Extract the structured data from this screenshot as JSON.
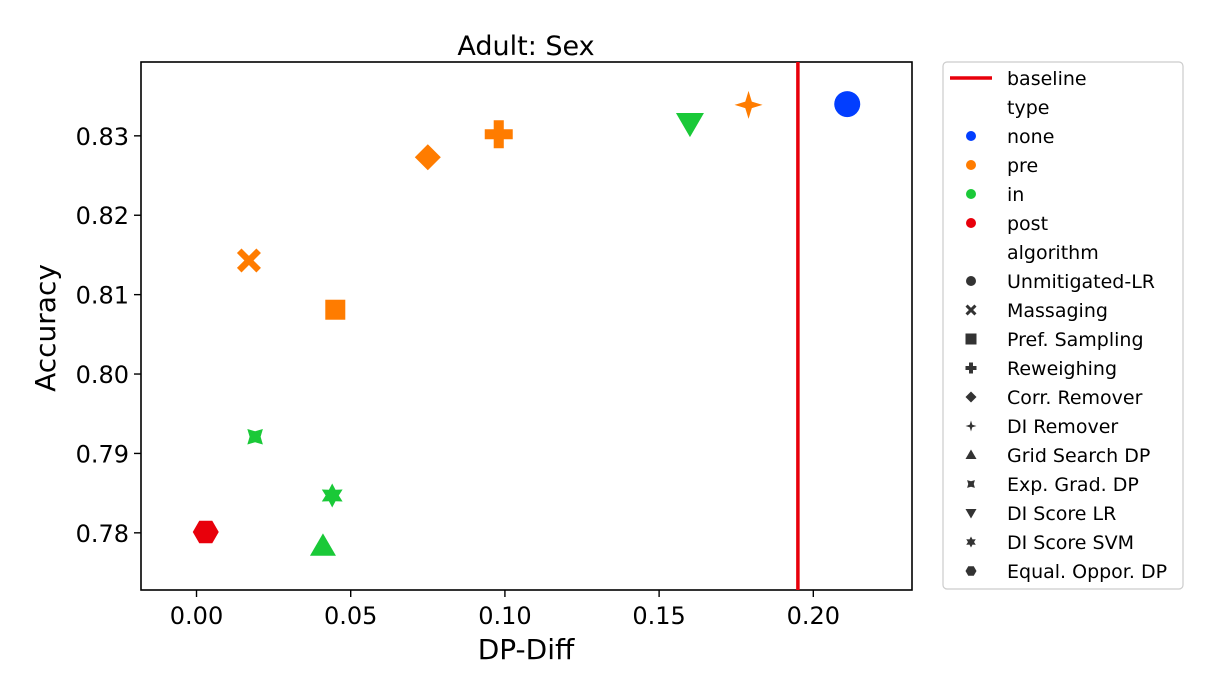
{
  "chart_data": {
    "type": "scatter",
    "title": "Adult: Sex",
    "xlabel": "DP-Diff",
    "ylabel": "Accuracy",
    "xlim": [
      -0.018,
      0.232
    ],
    "ylim": [
      0.7728,
      0.8393
    ],
    "xticks": [
      0.0,
      0.05,
      0.1,
      0.15,
      0.2
    ],
    "yticks": [
      0.78,
      0.79,
      0.8,
      0.81,
      0.82,
      0.83
    ],
    "x_tick_labels": [
      "0.00",
      "0.05",
      "0.10",
      "0.15",
      "0.20"
    ],
    "y_tick_labels": [
      "0.78",
      "0.79",
      "0.80",
      "0.81",
      "0.82",
      "0.83"
    ],
    "grid": false,
    "baseline": {
      "label": "baseline",
      "x": 0.195,
      "color": "#e8000b"
    },
    "legend": {
      "placement": "outside-right",
      "type_title": "type",
      "types": [
        {
          "label": "none",
          "color": "#023eff"
        },
        {
          "label": "pre",
          "color": "#ff7c00"
        },
        {
          "label": "in",
          "color": "#1ac938"
        },
        {
          "label": "post",
          "color": "#e8000b"
        }
      ],
      "algorithm_title": "algorithm",
      "algorithms": [
        {
          "label": "Unmitigated-LR",
          "marker": "circle"
        },
        {
          "label": "Massaging",
          "marker": "x"
        },
        {
          "label": "Pref. Sampling",
          "marker": "square"
        },
        {
          "label": "Reweighing",
          "marker": "plus"
        },
        {
          "label": "Corr. Remover",
          "marker": "diamond"
        },
        {
          "label": "DI Remover",
          "marker": "star4"
        },
        {
          "label": "Grid Search DP",
          "marker": "triangle-up"
        },
        {
          "label": "Exp. Grad. DP",
          "marker": "concave-star"
        },
        {
          "label": "DI Score LR",
          "marker": "triangle-down"
        },
        {
          "label": "DI Score SVM",
          "marker": "star6"
        },
        {
          "label": "Equal. Oppor. DP",
          "marker": "hexagon"
        }
      ]
    },
    "points": [
      {
        "algorithm": "Unmitigated-LR",
        "type": "none",
        "x": 0.211,
        "y": 0.834
      },
      {
        "algorithm": "Massaging",
        "type": "pre",
        "x": 0.017,
        "y": 0.8143
      },
      {
        "algorithm": "Pref. Sampling",
        "type": "pre",
        "x": 0.045,
        "y": 0.8081
      },
      {
        "algorithm": "Reweighing",
        "type": "pre",
        "x": 0.098,
        "y": 0.8302
      },
      {
        "algorithm": "Corr. Remover",
        "type": "pre",
        "x": 0.075,
        "y": 0.8273
      },
      {
        "algorithm": "DI Remover",
        "type": "pre",
        "x": 0.179,
        "y": 0.8339
      },
      {
        "algorithm": "Grid Search DP",
        "type": "in",
        "x": 0.041,
        "y": 0.7783
      },
      {
        "algorithm": "Exp. Grad. DP",
        "type": "in",
        "x": 0.019,
        "y": 0.7921
      },
      {
        "algorithm": "DI Score LR",
        "type": "in",
        "x": 0.16,
        "y": 0.8316
      },
      {
        "algorithm": "DI Score SVM",
        "type": "in",
        "x": 0.044,
        "y": 0.7847
      },
      {
        "algorithm": "Equal. Oppor. DP",
        "type": "post",
        "x": 0.003,
        "y": 0.7801
      }
    ]
  }
}
